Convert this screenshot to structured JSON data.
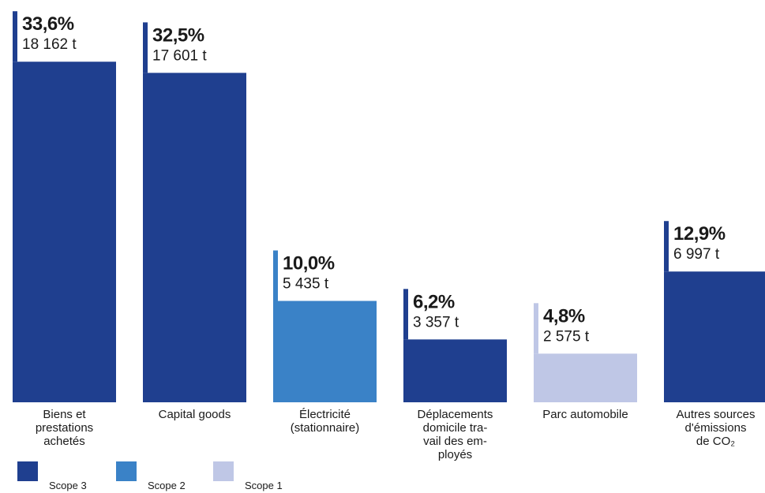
{
  "colors": {
    "Scope 3": "#1f3f8f",
    "Scope 2": "#3a82c7",
    "Scope 1": "#bfc7e6"
  },
  "chart_data": {
    "type": "bar",
    "title": "",
    "xlabel": "",
    "ylabel": "",
    "ylim": [
      0,
      36
    ],
    "categories": [
      [
        "Biens et",
        "prestations",
        "achetés"
      ],
      [
        "Capital goods"
      ],
      [
        "Électricité",
        "(stationnaire)"
      ],
      [
        "Déplacements",
        "domicile tra-",
        "vail des em-",
        "ployés"
      ],
      [
        "Parc automobile"
      ],
      [
        "Autres sources",
        "d'émissions",
        "de CO₂"
      ]
    ],
    "values": [
      33.6,
      32.5,
      10.0,
      6.2,
      4.8,
      12.9
    ],
    "percent_labels": [
      "33,6%",
      "32,5%",
      "10,0%",
      "6,2%",
      "4,8%",
      "12,9%"
    ],
    "tonnes_labels": [
      "18 162 t",
      "17 601 t",
      "5 435 t",
      "3 357 t",
      "2 575 t",
      "6 997 t"
    ],
    "scope": [
      "Scope 3",
      "Scope 3",
      "Scope 2",
      "Scope 3",
      "Scope 1",
      "Scope 3"
    ],
    "legend": {
      "placement": "bottom-left",
      "entries": [
        "Scope 3",
        "Scope 2",
        "Scope 1"
      ]
    },
    "grid": false
  }
}
